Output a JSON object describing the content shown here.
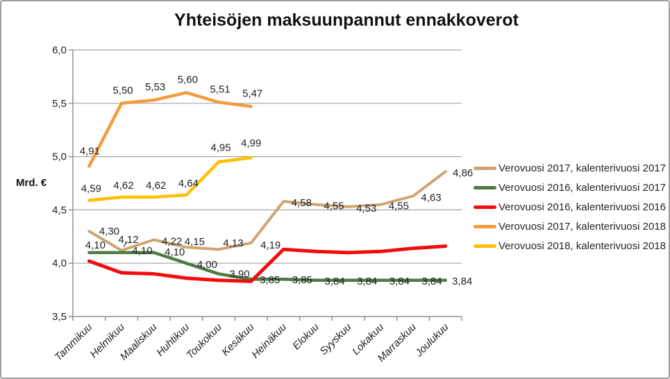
{
  "chart_data": {
    "type": "line",
    "title": "Yhteisöjen maksuunpannut ennakkoverot",
    "ylabel": "Mrd. €",
    "ylim": [
      3.5,
      6.0
    ],
    "ytick_step": 0.5,
    "ytick_labels": [
      "3,5",
      "4,0",
      "4,5",
      "5,0",
      "5,5",
      "6,0"
    ],
    "decimal_separator": ",",
    "grid": true,
    "legend_position": "right",
    "categories": [
      "Tammikuu",
      "Helmikuu",
      "Maaliskuu",
      "Huhtikuu",
      "Toukokuu",
      "Kesäkuu",
      "Heinäkuu",
      "Elokuu",
      "Syyskuu",
      "Lokakuu",
      "Marraskuu",
      "Joulukuu"
    ],
    "series": [
      {
        "name": "Verovuosi 2017, kalenterivuosi 2017",
        "color": "#CFA472",
        "data_labels": true,
        "values": [
          4.3,
          4.12,
          4.22,
          4.15,
          4.13,
          4.19,
          4.58,
          4.55,
          4.53,
          4.55,
          4.63,
          4.86
        ]
      },
      {
        "name": "Verovuosi 2016, kalenterivuosi 2017",
        "color": "#4E7B42",
        "data_labels": true,
        "values": [
          4.1,
          4.1,
          4.1,
          4.0,
          3.9,
          3.85,
          3.85,
          3.84,
          3.84,
          3.84,
          3.84,
          3.84
        ]
      },
      {
        "name": "Verovuosi 2016, kalenterivuosi 2016",
        "color": "#F20D0D",
        "data_labels": false,
        "values": [
          4.02,
          3.91,
          3.9,
          3.86,
          3.84,
          3.83,
          4.13,
          4.11,
          4.1,
          4.11,
          4.14,
          4.16
        ]
      },
      {
        "name": "Verovuosi 2017, kalenterivuosi 2018",
        "color": "#F49B3E",
        "data_labels": true,
        "values": [
          4.91,
          5.5,
          5.53,
          5.6,
          5.51,
          5.47
        ]
      },
      {
        "name": "Verovuosi 2018, kalenterivuosi 2018",
        "color": "#FEC000",
        "data_labels": true,
        "values": [
          4.59,
          4.62,
          4.62,
          4.64,
          4.95,
          4.99
        ]
      }
    ]
  }
}
